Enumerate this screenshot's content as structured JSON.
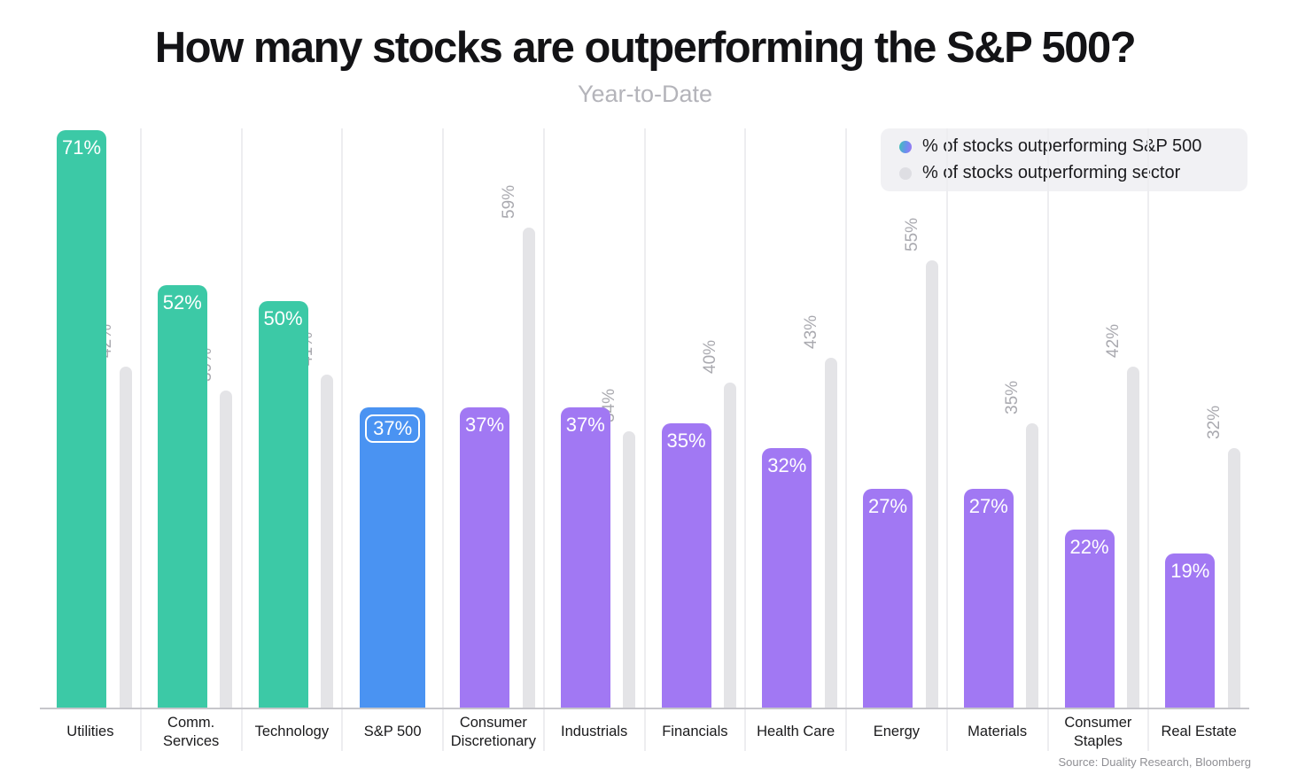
{
  "header": {
    "title": "How many stocks are outperforming the S&P 500?",
    "subtitle": "Year-to-Date"
  },
  "legend": {
    "items": [
      {
        "label": "% of stocks outperforming S&P 500",
        "swatch": "gradient-dot"
      },
      {
        "label": "% of stocks outperforming sector",
        "swatch": "gray-dot"
      }
    ]
  },
  "footer": {
    "source": "Source: Duality Research, Bloomberg"
  },
  "colors": {
    "teal": "#3cc9a6",
    "blue": "#4a93f2",
    "purple": "#a178f3",
    "gray_bar": "#e4e4e7",
    "bar_label": "#ffffff",
    "gray_label": "#a9a9af"
  },
  "chart_data": {
    "type": "bar",
    "title": "How many stocks are outperforming the S&P 500?",
    "subtitle": "Year-to-Date",
    "categories": [
      "Utilities",
      "Comm. Services",
      "Technology",
      "S&P 500",
      "Consumer Discretionary",
      "Industrials",
      "Financials",
      "Health Care",
      "Energy",
      "Materials",
      "Consumer Staples",
      "Real Estate"
    ],
    "series": [
      {
        "name": "% of stocks outperforming S&P 500",
        "values": [
          71,
          52,
          50,
          37,
          37,
          37,
          35,
          32,
          27,
          27,
          22,
          19
        ]
      },
      {
        "name": "% of stocks outperforming sector",
        "values": [
          42,
          39,
          41,
          null,
          59,
          34,
          40,
          43,
          55,
          35,
          42,
          32
        ]
      }
    ],
    "bar_colors": [
      "teal",
      "teal",
      "teal",
      "blue",
      "purple",
      "purple",
      "purple",
      "purple",
      "purple",
      "purple",
      "purple",
      "purple"
    ],
    "highlight_category": "S&P 500",
    "value_suffix": "%",
    "ylim": [
      0,
      75
    ],
    "grid": "vertical-only",
    "legend_position": "top-right",
    "xlabel": "",
    "ylabel": ""
  }
}
